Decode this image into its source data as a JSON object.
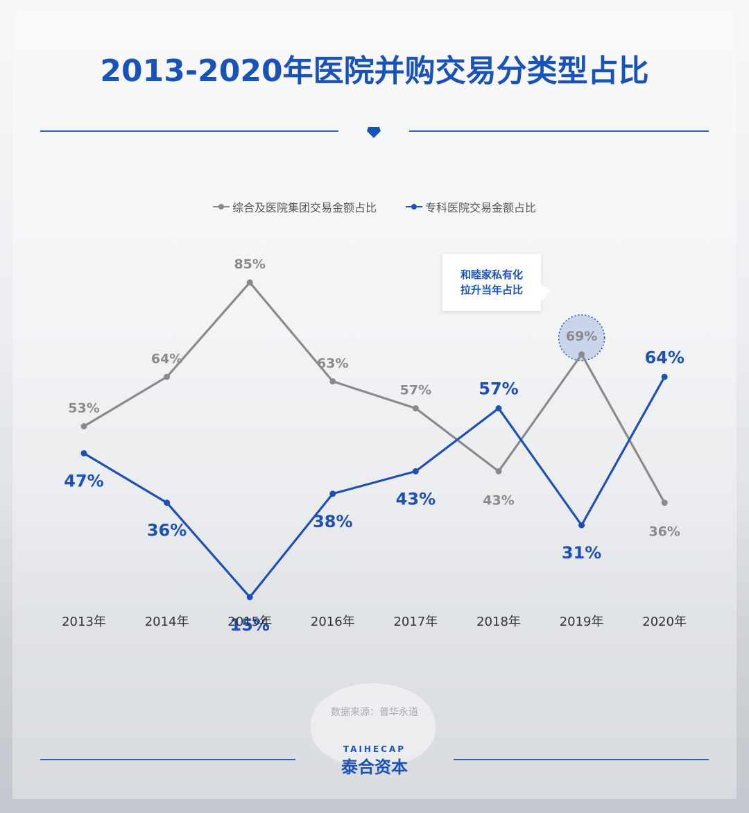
{
  "page": {
    "title": "2013-2020年医院并购交易分类型占比"
  },
  "colors": {
    "accent": "#1a53b8",
    "gray_series": "#8a8a8a",
    "blue_series": "#1e4fb5"
  },
  "callout": {
    "line1": "和睦家私有化",
    "line2": "拉升当年占比"
  },
  "footer": {
    "source": "数据来源：普华永道",
    "logo_en": "TAIHECAP",
    "logo_cn": "泰合资本"
  },
  "chart_data": {
    "type": "line",
    "categories": [
      "2013年",
      "2014年",
      "2015年",
      "2016年",
      "2017年",
      "2018年",
      "2019年",
      "2020年"
    ],
    "series": [
      {
        "name": "综合及医院集团交易金额占比",
        "values": [
          53,
          64,
          85,
          63,
          57,
          43,
          69,
          36
        ],
        "labels": [
          "53%",
          "64%",
          "85%",
          "63%",
          "57%",
          "43%",
          "69%",
          "36%"
        ]
      },
      {
        "name": "专科医院交易金额占比",
        "values": [
          47,
          36,
          15,
          38,
          43,
          57,
          31,
          64
        ],
        "labels": [
          "47%",
          "36%",
          "15%",
          "38%",
          "43%",
          "57%",
          "31%",
          "64%"
        ]
      }
    ],
    "ylim": [
      0,
      100
    ],
    "highlight": {
      "category": "2019年",
      "series": "综合及医院集团交易金额占比"
    },
    "grid": false,
    "legend": "top-center"
  }
}
